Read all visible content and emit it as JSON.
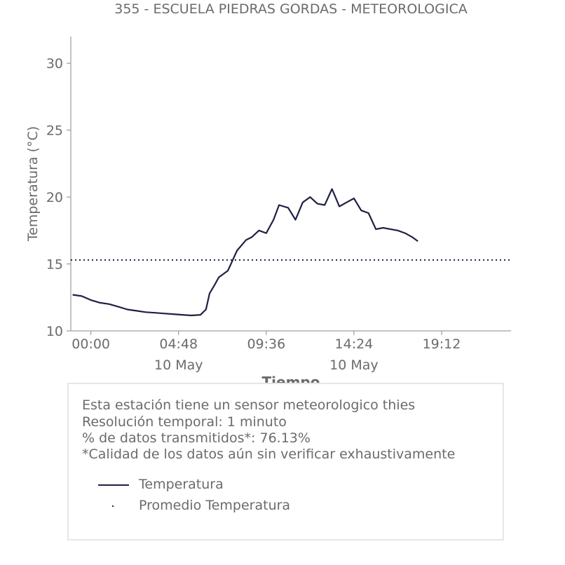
{
  "chart_data": {
    "type": "line",
    "title": "355 - ESCUELA PIEDRAS GORDAS - METEOROLOGICA",
    "xlabel": "Tiempo",
    "ylabel": "Temperatura (°C)",
    "ylim": [
      10,
      32
    ],
    "xlim_hours": [
      -1.1,
      23.0
    ],
    "y_ticks": [
      "10",
      "15",
      "20",
      "25",
      "30"
    ],
    "x_ticks": [
      {
        "hours": 0.0,
        "time": "00:00",
        "date": ""
      },
      {
        "hours": 4.8,
        "time": "04:48",
        "date": "10 May"
      },
      {
        "hours": 9.6,
        "time": "09:36",
        "date": ""
      },
      {
        "hours": 14.4,
        "time": "14:24",
        "date": "10 May"
      },
      {
        "hours": 19.2,
        "time": "19:12",
        "date": ""
      }
    ],
    "grid": false,
    "series": [
      {
        "name": "Temperatura",
        "color": "#1f2044",
        "style": "solid",
        "x_hours": [
          -1.0,
          -0.5,
          0.0,
          0.5,
          1.0,
          1.5,
          2.0,
          2.5,
          3.0,
          3.5,
          4.0,
          4.5,
          5.0,
          5.5,
          6.0,
          6.3,
          6.5,
          6.8,
          7.0,
          7.5,
          8.0,
          8.5,
          8.8,
          9.2,
          9.6,
          10.0,
          10.3,
          10.8,
          11.2,
          11.6,
          12.0,
          12.4,
          12.8,
          13.2,
          13.6,
          14.0,
          14.4,
          14.8,
          15.2,
          15.6,
          16.0,
          16.4,
          16.8,
          17.2,
          17.6,
          17.9
        ],
        "values": [
          12.7,
          12.6,
          12.3,
          12.1,
          12.0,
          11.8,
          11.6,
          11.5,
          11.4,
          11.35,
          11.3,
          11.25,
          11.2,
          11.15,
          11.2,
          11.6,
          12.8,
          13.5,
          14.0,
          14.5,
          16.0,
          16.8,
          17.0,
          17.5,
          17.3,
          18.3,
          19.4,
          19.2,
          18.3,
          19.6,
          20.0,
          19.5,
          19.4,
          20.6,
          19.3,
          19.6,
          19.9,
          19.0,
          18.8,
          17.6,
          17.7,
          17.6,
          17.5,
          17.3,
          17.0,
          16.7
        ]
      },
      {
        "name": "Promedio Temperatura",
        "color": "#1f2044",
        "style": "dotted",
        "value": 15.3
      }
    ]
  },
  "info": {
    "line1": "Esta estación tiene un sensor meteorologico thies",
    "line2": "Resolución temporal: 1 minuto",
    "line3": "% de datos transmitidos*: 76.13%",
    "line4": "*Calidad de los datos aún sin verificar exhaustivamente"
  },
  "legend": {
    "item1": "Temperatura",
    "item2": "Promedio Temperatura"
  }
}
